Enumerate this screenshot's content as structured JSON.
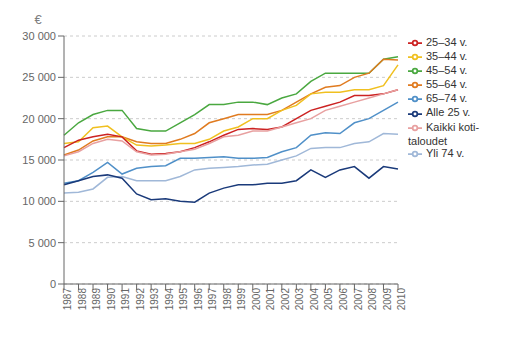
{
  "chart_data": {
    "type": "line",
    "ylabel": "€",
    "categories": [
      "1987",
      "1988",
      "1989",
      "1990",
      "1991",
      "1992",
      "1993",
      "1994",
      "1995",
      "1996",
      "1997",
      "1998",
      "1999",
      "2000",
      "2001",
      "2002",
      "2003",
      "2004",
      "2005",
      "2006",
      "2007",
      "2008",
      "2009",
      "2010"
    ],
    "series": [
      {
        "name": "45–54 v.",
        "color": "#4aa840",
        "values": [
          18000,
          19500,
          20500,
          21000,
          21000,
          18800,
          18500,
          18500,
          19500,
          20500,
          21700,
          21700,
          22000,
          22000,
          21700,
          22500,
          23000,
          24500,
          25500,
          25500,
          25500,
          25500,
          27200,
          27500
        ]
      },
      {
        "name": "55–64 v.",
        "color": "#e07b20",
        "values": [
          15600,
          16200,
          17300,
          17800,
          17800,
          17200,
          17000,
          17000,
          17500,
          18200,
          19500,
          20000,
          20500,
          20500,
          20500,
          21000,
          22000,
          23000,
          23800,
          24000,
          25000,
          25500,
          27200,
          27100
        ]
      },
      {
        "name": "35–44 v.",
        "color": "#f0c020",
        "values": [
          17000,
          17200,
          18900,
          19100,
          17800,
          16800,
          16700,
          16800,
          17000,
          17000,
          17500,
          18500,
          19000,
          20000,
          20000,
          21000,
          21600,
          23000,
          23200,
          23200,
          23500,
          23500,
          24000,
          26500
        ]
      },
      {
        "name": "25–34 v.",
        "color": "#cc2222",
        "values": [
          16500,
          17400,
          17800,
          18100,
          17800,
          16100,
          15700,
          15800,
          16000,
          16500,
          17200,
          18000,
          18700,
          18800,
          18700,
          19000,
          20000,
          21000,
          21500,
          22000,
          22800,
          22800,
          23000,
          23500
        ]
      },
      {
        "name": "Kaikki koti-\ntaloudet",
        "color": "#e8a0a0",
        "values": [
          15500,
          16000,
          17000,
          17500,
          17300,
          16000,
          15600,
          15700,
          16000,
          16300,
          17000,
          17800,
          18000,
          18500,
          18500,
          19000,
          19500,
          20000,
          21000,
          21500,
          22000,
          22500,
          23000,
          23500
        ]
      },
      {
        "name": "65–74 v.",
        "color": "#5090c8",
        "values": [
          12200,
          12500,
          13500,
          14700,
          13300,
          14000,
          14200,
          14300,
          15200,
          15200,
          15300,
          15400,
          15200,
          15200,
          15300,
          16000,
          16500,
          18000,
          18300,
          18200,
          19500,
          20000,
          21000,
          22000
        ]
      },
      {
        "name": "Yli 74 v.",
        "color": "#a0b8d8",
        "values": [
          11000,
          11100,
          11500,
          12900,
          13000,
          12500,
          12500,
          12500,
          13000,
          13800,
          14000,
          14100,
          14200,
          14400,
          14500,
          15000,
          15500,
          16400,
          16500,
          16500,
          17000,
          17200,
          18200,
          18100
        ]
      },
      {
        "name": "Alle 25 v.",
        "color": "#1a3a7a",
        "values": [
          12000,
          12500,
          13000,
          13200,
          12800,
          10900,
          10200,
          10300,
          10000,
          9900,
          11000,
          11600,
          12000,
          12000,
          12200,
          12200,
          12500,
          13800,
          12900,
          13800,
          14200,
          12800,
          14200,
          13900
        ]
      }
    ],
    "ylim": [
      0,
      30000
    ],
    "yticks": [
      0,
      {
        "value": 5000,
        "label": "5 000"
      },
      {
        "value": 10000,
        "label": "10 000"
      },
      {
        "value": 15000,
        "label": "15 000"
      },
      {
        "value": 20000,
        "label": "20 000"
      },
      {
        "value": 25000,
        "label": "25 000"
      },
      {
        "value": 30000,
        "label": "30 000"
      }
    ],
    "grid": "y",
    "legend": "right"
  }
}
